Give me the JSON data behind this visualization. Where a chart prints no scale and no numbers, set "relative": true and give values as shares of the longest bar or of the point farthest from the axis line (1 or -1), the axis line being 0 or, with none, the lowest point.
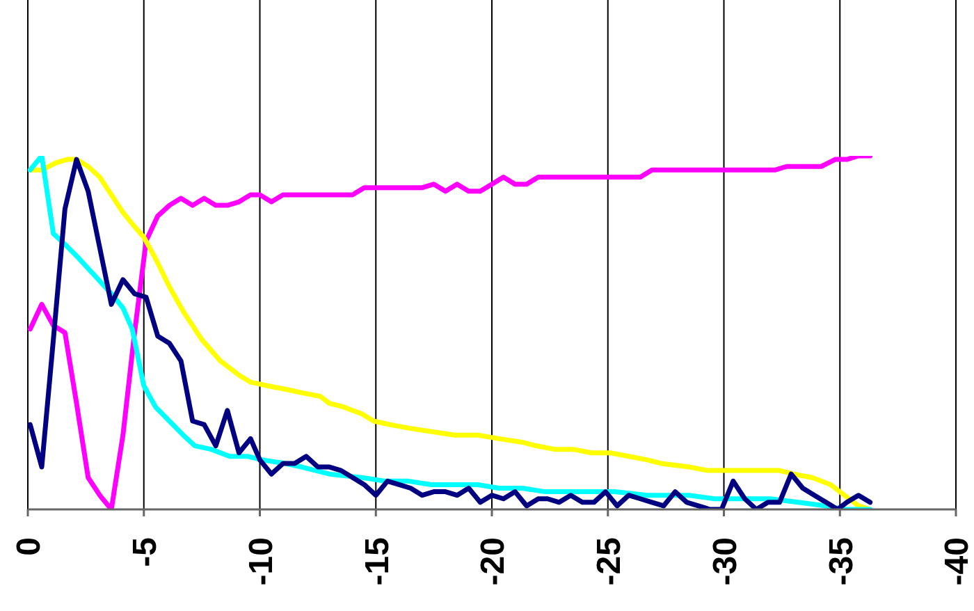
{
  "chart_data": {
    "type": "line",
    "relative": true,
    "xlim": [
      0,
      -40
    ],
    "xticks": [
      0,
      -5,
      -10,
      -15,
      -20,
      -25,
      -30,
      -35,
      -40
    ],
    "grid": "x",
    "marker": "none",
    "line_style": "solid",
    "x": [
      -0.1,
      -0.6,
      -1.1,
      -1.6,
      -2.1,
      -2.6,
      -3.1,
      -3.6,
      -4.1,
      -4.6,
      -5.1,
      -5.6,
      -6.1,
      -6.6,
      -7.1,
      -7.6,
      -8.1,
      -8.6,
      -9.1,
      -9.6,
      -10,
      -10.5,
      -11,
      -11.5,
      -12,
      -12.5,
      -13,
      -13.5,
      -14,
      -14.5,
      -15,
      -15.5,
      -16,
      -16.5,
      -17,
      -17.5,
      -18,
      -18.5,
      -19,
      -19.5,
      -20,
      -20.5,
      -21,
      -21.5,
      -22,
      -22.4,
      -22.9,
      -23.4,
      -23.9,
      -24.4,
      -24.9,
      -25.4,
      -25.9,
      -26.4,
      -26.9,
      -27.4,
      -27.9,
      -28.4,
      -28.9,
      -29.4,
      -29.9,
      -30.4,
      -30.9,
      -31.4,
      -31.9,
      -32.4,
      -32.9,
      -33.4,
      -33.9,
      -34.4,
      -34.9,
      -35.3,
      -35.8,
      -36.3
    ],
    "series": [
      {
        "color": "#ff00ff",
        "x": [
          -0.1,
          -0.6,
          -1.1,
          -1.6,
          -2.1,
          -2.6,
          -3.1,
          -3.6,
          -4.1,
          -4.6,
          -5.1,
          -5.6,
          -6.1,
          -6.6,
          -7.1,
          -7.6,
          -8.1,
          -8.6,
          -9.1,
          -9.6,
          -10,
          -10.5,
          -11,
          -14,
          -14.5,
          -17,
          -17.5,
          -18,
          -18.5,
          -19,
          -19.5,
          -20,
          -20.5,
          -21,
          -21.5,
          -22,
          -26.4,
          -26.9,
          -32.2,
          -32.7,
          -34.2,
          -34.8,
          -35.3,
          -35.8,
          -36.3
        ],
        "values": [
          0.51,
          0.58,
          0.52,
          0.5,
          0.3,
          0.09,
          0.04,
          0,
          0.21,
          0.5,
          0.76,
          0.83,
          0.86,
          0.88,
          0.86,
          0.88,
          0.86,
          0.86,
          0.87,
          0.89,
          0.89,
          0.87,
          0.89,
          0.89,
          0.91,
          0.91,
          0.92,
          0.9,
          0.92,
          0.9,
          0.9,
          0.92,
          0.94,
          0.92,
          0.92,
          0.94,
          0.94,
          0.96,
          0.96,
          0.97,
          0.97,
          0.99,
          0.99,
          1,
          1
        ]
      },
      {
        "color": "#ffff00",
        "x": [
          -0.1,
          -0.6,
          -1.2,
          -1.7,
          -2.1,
          -2.6,
          -3.1,
          -3.6,
          -4.1,
          -4.6,
          -5,
          -5.5,
          -6.1,
          -6.7,
          -7.5,
          -8.3,
          -9.1,
          -9.6,
          -10.3,
          -11.1,
          -11.8,
          -12.6,
          -13,
          -13.6,
          -14.4,
          -14.9,
          -15.6,
          -16.4,
          -17.4,
          -18.4,
          -19.4,
          -20.3,
          -21.3,
          -21.9,
          -22.7,
          -23.5,
          -24.3,
          -25.1,
          -25.9,
          -26.7,
          -27.3,
          -28.5,
          -29.3,
          -31.2,
          -32.4,
          -33,
          -33.8,
          -34.6,
          -35.2,
          -35.8,
          -36.3
        ],
        "values": [
          0.96,
          0.96,
          0.98,
          0.99,
          0.99,
          0.97,
          0.94,
          0.89,
          0.84,
          0.8,
          0.77,
          0.71,
          0.63,
          0.56,
          0.48,
          0.42,
          0.38,
          0.36,
          0.35,
          0.34,
          0.33,
          0.32,
          0.3,
          0.29,
          0.27,
          0.25,
          0.24,
          0.23,
          0.22,
          0.21,
          0.21,
          0.2,
          0.19,
          0.18,
          0.17,
          0.17,
          0.16,
          0.16,
          0.15,
          0.14,
          0.13,
          0.12,
          0.11,
          0.11,
          0.11,
          0.1,
          0.09,
          0.07,
          0.04,
          0.01,
          0
        ]
      },
      {
        "color": "#00ffff",
        "x": [
          -0.1,
          -0.6,
          -1.1,
          -1.6,
          -2.2,
          -2.9,
          -3.6,
          -4.1,
          -4.5,
          -5,
          -5.5,
          -6.1,
          -6.7,
          -7.2,
          -7.9,
          -8.7,
          -9.5,
          -10.1,
          -11.1,
          -11.8,
          -13,
          -14.4,
          -15.4,
          -16.4,
          -17.4,
          -18.4,
          -19.4,
          -20.3,
          -21.3,
          -22.3,
          -23.3,
          -24.3,
          -25.3,
          -26.7,
          -27.3,
          -28.5,
          -29.6,
          -31,
          -32,
          -33.2,
          -34.4,
          -35.2,
          -35.8,
          -36.3
        ],
        "values": [
          0.96,
          1,
          0.78,
          0.75,
          0.71,
          0.66,
          0.61,
          0.57,
          0.51,
          0.35,
          0.29,
          0.25,
          0.21,
          0.18,
          0.17,
          0.15,
          0.15,
          0.14,
          0.13,
          0.12,
          0.1,
          0.09,
          0.08,
          0.08,
          0.07,
          0.07,
          0.07,
          0.06,
          0.06,
          0.05,
          0.05,
          0.05,
          0.05,
          0.04,
          0.04,
          0.04,
          0.03,
          0.03,
          0.03,
          0.02,
          0.01,
          0,
          0,
          0
        ]
      },
      {
        "color": "#000080",
        "values": [
          0.24,
          0.12,
          0.48,
          0.85,
          0.99,
          0.9,
          0.74,
          0.58,
          0.65,
          0.61,
          0.6,
          0.49,
          0.47,
          0.42,
          0.25,
          0.24,
          0.18,
          0.28,
          0.16,
          0.2,
          0.14,
          0.1,
          0.13,
          0.13,
          0.15,
          0.12,
          0.12,
          0.11,
          0.09,
          0.07,
          0.04,
          0.08,
          0.07,
          0.06,
          0.04,
          0.05,
          0.05,
          0.04,
          0.06,
          0.02,
          0.04,
          0.03,
          0.05,
          0.01,
          0.03,
          0.03,
          0.02,
          0.04,
          0.02,
          0.02,
          0.05,
          0.01,
          0.04,
          0.03,
          0.02,
          0.01,
          0.05,
          0.02,
          0.01,
          0,
          0,
          0.08,
          0.03,
          0,
          0.02,
          0.02,
          0.1,
          0.06,
          0.04,
          0.02,
          0,
          0.02,
          0.04,
          0.02
        ]
      }
    ]
  }
}
